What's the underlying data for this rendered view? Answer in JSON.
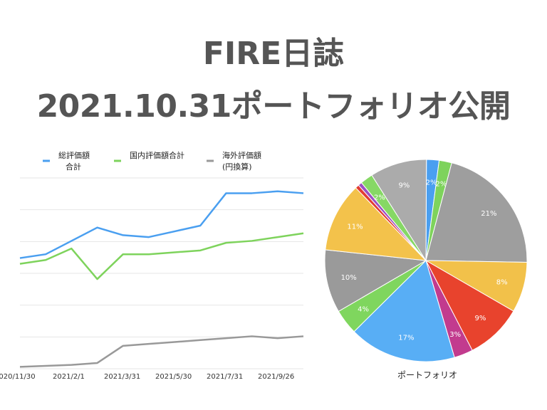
{
  "header": {
    "title_line1": "FIRE日誌",
    "title_line2": "2021.10.31ポートフォリオ公開"
  },
  "colors": {
    "title": "#555555",
    "blue": "#4a9ff0",
    "green": "#7ed35c",
    "gray": "#999999",
    "grid": "#e6e6e6"
  },
  "chart_data": [
    {
      "type": "line",
      "title": "",
      "legend_position": "top",
      "grid": true,
      "x_tick_labels": [
        "2020/11/30",
        "2021/2/1",
        "2021/3/31",
        "2021/5/30",
        "2021/7/31",
        "2021/9/26"
      ],
      "x": [
        "2020/11/30",
        "2020/12/31",
        "2021/1/31",
        "2021/2/28",
        "2021/3/31",
        "2021/4/30",
        "2021/5/30",
        "2021/6/30",
        "2021/7/31",
        "2021/8/31",
        "2021/9/26",
        "2021/10/31"
      ],
      "ylim": [
        0,
        100
      ],
      "series": [
        {
          "name_lines": [
            "総評価額",
            "合計"
          ],
          "color": "#4a9ff0",
          "values": [
            58,
            60,
            67,
            74,
            70,
            69,
            72,
            75,
            92,
            92,
            93,
            92
          ]
        },
        {
          "name_lines": [
            "国内評価額合計"
          ],
          "color": "#7ed35c",
          "values": [
            55,
            57,
            63,
            47,
            60,
            60,
            61,
            62,
            66,
            67,
            69,
            71
          ]
        },
        {
          "name_lines": [
            "海外評価額",
            "(円換算)"
          ],
          "color": "#999999",
          "values": [
            1,
            1.5,
            2,
            3,
            12,
            13,
            14,
            15,
            16,
            17,
            16,
            17
          ]
        }
      ]
    },
    {
      "type": "pie",
      "xlabel": "ポートフォリオ",
      "slices": [
        {
          "label": "2%",
          "value": 2,
          "color": "#4a9ff0"
        },
        {
          "label": "2%",
          "value": 2,
          "color": "#7ed35c"
        },
        {
          "label": "21%",
          "value": 21,
          "color": "#9e9e9e"
        },
        {
          "label": "8%",
          "value": 8,
          "color": "#f2c14a"
        },
        {
          "label": "9%",
          "value": 9,
          "color": "#e8432d"
        },
        {
          "label": "3%",
          "value": 3,
          "color": "#c23b8e"
        },
        {
          "label": "17%",
          "value": 17,
          "color": "#58aef5"
        },
        {
          "label": "4%",
          "value": 4,
          "color": "#7fd65e"
        },
        {
          "label": "10%",
          "value": 10,
          "color": "#9a9a9a"
        },
        {
          "label": "11%",
          "value": 11,
          "color": "#f3c24b"
        },
        {
          "label": "",
          "value": 0.6,
          "color": "#e23c35"
        },
        {
          "label": "",
          "value": 0.6,
          "color": "#9b4fc4"
        },
        {
          "label": "2%",
          "value": 2,
          "color": "#86d865"
        },
        {
          "label": "9%",
          "value": 9,
          "color": "#ababab"
        }
      ]
    }
  ]
}
